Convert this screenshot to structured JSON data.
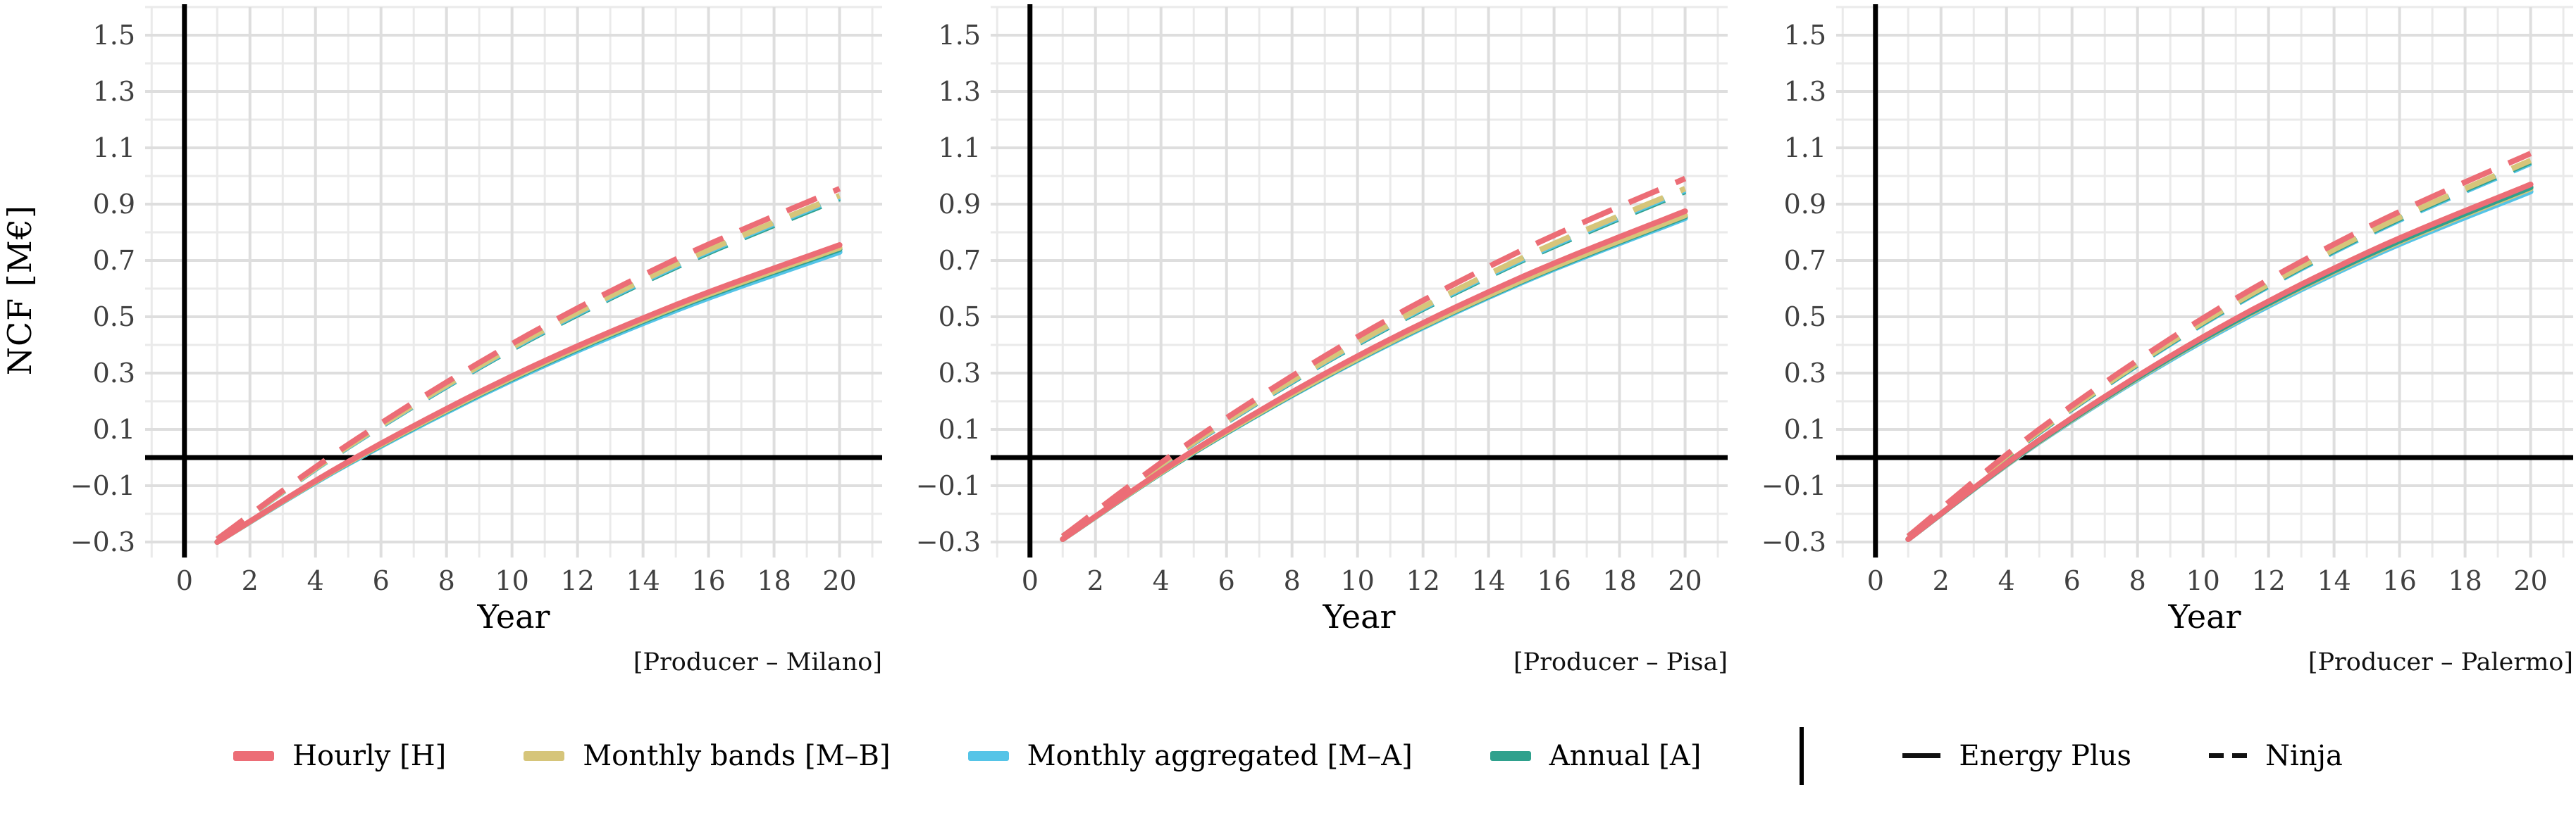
{
  "figure": {
    "ylabel": "NCF [M€]",
    "xlabel": "Year",
    "background": "#ffffff",
    "colors": {
      "hourly": "#ec6d76",
      "monthly_bands": "#d6c57a",
      "monthly_aggregated": "#55c4e7",
      "annual": "#2fa18d",
      "axis": "#000000",
      "grid_major": "#dedede",
      "grid_minor": "#eaeaea",
      "tick_text": "#404040"
    }
  },
  "chart_data": [
    {
      "type": "line",
      "caption": "[Producer – Milano]",
      "xlabel": "Year",
      "ylabel": "NCF [M€]",
      "xlim": [
        -1.2,
        21.3
      ],
      "ylim": [
        -0.355,
        1.6
      ],
      "xticks": [
        0,
        2,
        4,
        6,
        8,
        10,
        12,
        14,
        16,
        18,
        20
      ],
      "yticks": [
        1.5,
        1.3,
        1.1,
        0.9,
        0.7,
        0.5,
        0.3,
        0.1,
        -0.1,
        -0.3
      ],
      "grid": "major+minor",
      "legend_position": "bottom-shared",
      "x": [
        1,
        5,
        10,
        15,
        20
      ],
      "series": [
        {
          "name": "Hourly [H]",
          "source": "Energy Plus",
          "style": "solid",
          "color": "#ec6d76",
          "values": [
            -0.3,
            -0.015,
            0.289,
            0.542,
            0.755
          ]
        },
        {
          "name": "Monthly bands [M–B]",
          "source": "Energy Plus",
          "style": "solid",
          "color": "#d6c57a",
          "values": [
            -0.3,
            -0.018,
            0.283,
            0.535,
            0.745
          ]
        },
        {
          "name": "Annual [A]",
          "source": "Energy Plus",
          "style": "solid",
          "color": "#2fa18d",
          "values": [
            -0.3,
            -0.019,
            0.28,
            0.531,
            0.74
          ]
        },
        {
          "name": "Monthly aggregated [M–A]",
          "source": "Energy Plus",
          "style": "solid",
          "color": "#55c4e7",
          "values": [
            -0.3,
            -0.022,
            0.275,
            0.523,
            0.73
          ]
        },
        {
          "name": "Hourly [H]",
          "source": "Ninja",
          "style": "dashed",
          "color": "#ec6d76",
          "values": [
            -0.29,
            0.046,
            0.404,
            0.704,
            0.955
          ]
        },
        {
          "name": "Monthly bands [M–B]",
          "source": "Ninja",
          "style": "dashed",
          "color": "#d6c57a",
          "values": [
            -0.29,
            0.04,
            0.391,
            0.685,
            0.93
          ]
        },
        {
          "name": "Monthly aggregated [M–A]",
          "source": "Ninja",
          "style": "dashed",
          "color": "#55c4e7",
          "values": [
            -0.29,
            0.038,
            0.388,
            0.68,
            0.925
          ]
        },
        {
          "name": "Annual [A]",
          "source": "Ninja",
          "style": "dashed",
          "color": "#2fa18d",
          "values": [
            -0.29,
            0.037,
            0.385,
            0.676,
            0.92
          ]
        }
      ]
    },
    {
      "type": "line",
      "caption": "[Producer – Pisa]",
      "xlabel": "Year",
      "ylabel": "NCF [M€]",
      "xlim": [
        -1.2,
        21.3
      ],
      "ylim": [
        -0.355,
        1.6
      ],
      "xticks": [
        0,
        2,
        4,
        6,
        8,
        10,
        12,
        14,
        16,
        18,
        20
      ],
      "yticks": [
        1.5,
        1.3,
        1.1,
        0.9,
        0.7,
        0.5,
        0.3,
        0.1,
        -0.1,
        -0.3
      ],
      "grid": "major+minor",
      "legend_position": "bottom-shared",
      "x": [
        1,
        5,
        10,
        15,
        20
      ],
      "series": [
        {
          "name": "Hourly [H]",
          "source": "Energy Plus",
          "style": "solid",
          "color": "#ec6d76",
          "values": [
            -0.29,
            0.025,
            0.36,
            0.64,
            0.875
          ]
        },
        {
          "name": "Monthly bands [M–B]",
          "source": "Energy Plus",
          "style": "solid",
          "color": "#d6c57a",
          "values": [
            -0.29,
            0.021,
            0.351,
            0.628,
            0.86
          ]
        },
        {
          "name": "Annual [A]",
          "source": "Energy Plus",
          "style": "solid",
          "color": "#2fa18d",
          "values": [
            -0.29,
            0.019,
            0.349,
            0.625,
            0.856
          ]
        },
        {
          "name": "Monthly aggregated [M–A]",
          "source": "Energy Plus",
          "style": "solid",
          "color": "#55c4e7",
          "values": [
            -0.29,
            0.018,
            0.346,
            0.621,
            0.85
          ]
        },
        {
          "name": "Hourly [H]",
          "source": "Ninja",
          "style": "dashed",
          "color": "#ec6d76",
          "values": [
            -0.28,
            0.063,
            0.429,
            0.735,
            0.991
          ]
        },
        {
          "name": "Monthly bands [M–B]",
          "source": "Ninja",
          "style": "dashed",
          "color": "#d6c57a",
          "values": [
            -0.28,
            0.054,
            0.409,
            0.707,
            0.955
          ]
        },
        {
          "name": "Monthly aggregated [M–A]",
          "source": "Ninja",
          "style": "dashed",
          "color": "#55c4e7",
          "values": [
            -0.28,
            0.052,
            0.406,
            0.702,
            0.95
          ]
        },
        {
          "name": "Annual [A]",
          "source": "Ninja",
          "style": "dashed",
          "color": "#2fa18d",
          "values": [
            -0.28,
            0.051,
            0.403,
            0.698,
            0.945
          ]
        }
      ]
    },
    {
      "type": "line",
      "caption": "[Producer – Palermo]",
      "xlabel": "Year",
      "ylabel": "NCF [M€]",
      "xlim": [
        -1.2,
        21.3
      ],
      "ylim": [
        -0.355,
        1.6
      ],
      "xticks": [
        0,
        2,
        4,
        6,
        8,
        10,
        12,
        14,
        16,
        18,
        20
      ],
      "yticks": [
        1.5,
        1.3,
        1.1,
        0.9,
        0.7,
        0.5,
        0.3,
        0.1,
        -0.1,
        -0.3
      ],
      "grid": "major+minor",
      "legend_position": "bottom-shared",
      "x": [
        1,
        5,
        10,
        15,
        20
      ],
      "series": [
        {
          "name": "Hourly [H]",
          "source": "Energy Plus",
          "style": "solid",
          "color": "#ec6d76",
          "values": [
            -0.29,
            0.062,
            0.428,
            0.727,
            0.97
          ]
        },
        {
          "name": "Annual [A]",
          "source": "Energy Plus",
          "style": "solid",
          "color": "#2fa18d",
          "values": [
            -0.29,
            0.059,
            0.422,
            0.718,
            0.96
          ]
        },
        {
          "name": "Monthly bands [M–B]",
          "source": "Energy Plus",
          "style": "solid",
          "color": "#d6c57a",
          "values": [
            -0.29,
            0.057,
            0.419,
            0.714,
            0.955
          ]
        },
        {
          "name": "Monthly aggregated [M–A]",
          "source": "Energy Plus",
          "style": "solid",
          "color": "#55c4e7",
          "values": [
            -0.29,
            0.055,
            0.414,
            0.707,
            0.945
          ]
        },
        {
          "name": "Hourly [H]",
          "source": "Ninja",
          "style": "dashed",
          "color": "#ec6d76",
          "values": [
            -0.28,
            0.1,
            0.495,
            0.817,
            1.08
          ]
        },
        {
          "name": "Monthly bands [M–B]",
          "source": "Ninja",
          "style": "dashed",
          "color": "#d6c57a",
          "values": [
            -0.28,
            0.093,
            0.481,
            0.797,
            1.055
          ]
        },
        {
          "name": "Annual [A]",
          "source": "Ninja",
          "style": "dashed",
          "color": "#2fa18d",
          "values": [
            -0.28,
            0.091,
            0.478,
            0.793,
            1.05
          ]
        },
        {
          "name": "Monthly aggregated [M–A]",
          "source": "Ninja",
          "style": "dashed",
          "color": "#55c4e7",
          "values": [
            -0.28,
            0.09,
            0.475,
            0.789,
            1.045
          ]
        }
      ]
    }
  ],
  "legend": {
    "models": [
      {
        "label": "Hourly [H]",
        "color": "#ec6d76"
      },
      {
        "label": "Monthly bands [M–B]",
        "color": "#d6c57a"
      },
      {
        "label": "Monthly aggregated [M–A]",
        "color": "#55c4e7"
      },
      {
        "label": "Annual [A]",
        "color": "#2fa18d"
      }
    ],
    "sources": [
      {
        "label": "Energy Plus",
        "style": "solid"
      },
      {
        "label": "Ninja",
        "style": "dashed"
      }
    ]
  }
}
